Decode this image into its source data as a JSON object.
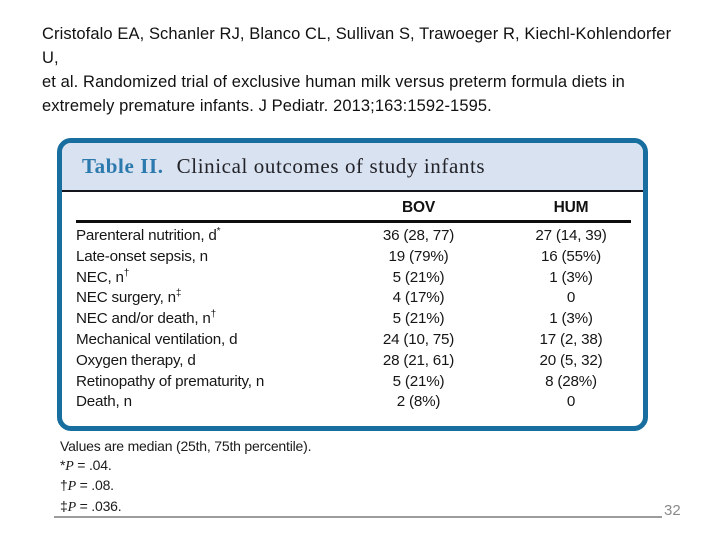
{
  "citation": {
    "lines": [
      "Cristofalo EA, Schanler RJ, Blanco CL, Sullivan S, Trawoeger R, Kiechl-Kohlendorfer U,",
      "et al. Randomized trial of exclusive human milk versus preterm formula diets in",
      "extremely premature infants. J Pediatr. 2013;163:1592-1595."
    ]
  },
  "figure": {
    "title_label": "Table II.",
    "title_text": "Clinical outcomes of study infants",
    "columns": [
      "BOV",
      "HUM"
    ],
    "rows": [
      {
        "label": "Parenteral nutrition, d",
        "marker": "*",
        "bov": "36 (28, 77)",
        "hum": "27 (14, 39)"
      },
      {
        "label": "Late-onset sepsis, n",
        "marker": "",
        "bov": "19 (79%)",
        "hum": "16 (55%)"
      },
      {
        "label": "NEC, n",
        "marker": "†",
        "bov": "5 (21%)",
        "hum": "1 (3%)"
      },
      {
        "label": "NEC surgery, n",
        "marker": "‡",
        "bov": "4 (17%)",
        "hum": "0"
      },
      {
        "label": "NEC and/or death, n",
        "marker": "†",
        "bov": "5 (21%)",
        "hum": "1 (3%)"
      },
      {
        "label": "Mechanical ventilation, d",
        "marker": "",
        "bov": "24 (10, 75)",
        "hum": "17 (2, 38)"
      },
      {
        "label": "Oxygen therapy, d",
        "marker": "",
        "bov": "28 (21, 61)",
        "hum": "20 (5, 32)"
      },
      {
        "label": "Retinopathy of prematurity, n",
        "marker": "",
        "bov": "5 (21%)",
        "hum": "8 (28%)"
      },
      {
        "label": "Death, n",
        "marker": "",
        "bov": "2 (8%)",
        "hum": "0"
      }
    ],
    "colors": {
      "border_blue": "#176e9f",
      "header_band": "#d9e2f0",
      "title_blue": "#2c79ae"
    }
  },
  "footnotes": {
    "note": "Values are median (25th, 75th percentile).",
    "items": [
      {
        "sym": "*",
        "p": "P",
        "rest": " = .04."
      },
      {
        "sym": "†",
        "p": "P",
        "rest": " = .08."
      },
      {
        "sym": "‡",
        "p": "P",
        "rest": " = .036."
      }
    ]
  },
  "footer": {
    "page_number": "32"
  }
}
